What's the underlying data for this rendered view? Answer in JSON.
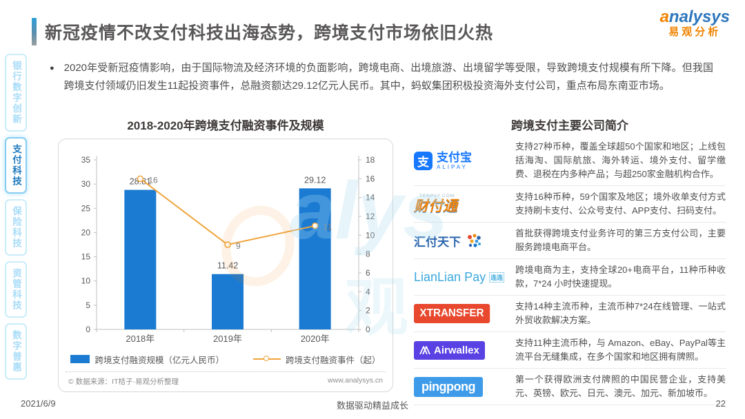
{
  "page": {
    "title": "新冠疫情不改支付科技出海态势，跨境支付市场依旧火热",
    "date": "2021/6/9",
    "slogan": "数据驱动精益成长",
    "page_number": "22"
  },
  "logo": {
    "brand_first": "a",
    "brand_rest": "nalysys",
    "brand_cn": "易观分析"
  },
  "bullet": {
    "text": "2020年受新冠疫情影响，由于国际物流及经济环境的负面影响，跨境电商、出境旅游、出境留学等受限，导致跨境支付规模有所下降。但我国跨境支付领域仍旧发生11起投资事件，总融资额达29.12亿元人民币。其中，蚂蚁集团积极投资海外支付公司，重点布局东南亚市场。"
  },
  "sidebar": {
    "items": [
      {
        "label": "银行数字创新",
        "active": false
      },
      {
        "label": "支付科技",
        "active": true
      },
      {
        "label": "保险科技",
        "active": false
      },
      {
        "label": "资管科技",
        "active": false
      },
      {
        "label": "数字普惠",
        "active": false
      }
    ]
  },
  "chart_data": {
    "type": "bar",
    "title": "2018-2020年跨境支付融资事件及规模",
    "categories": [
      "2018年",
      "2019年",
      "2020年"
    ],
    "series": [
      {
        "name": "跨境支付融资规模（亿元人民币）",
        "kind": "bar",
        "axis": "left",
        "color": "#1b7bd2",
        "values": [
          28.81,
          11.42,
          29.12
        ]
      },
      {
        "name": "跨境支付融资事件（起）",
        "kind": "line",
        "axis": "right",
        "color": "#f0a43c",
        "values": [
          16,
          9,
          11
        ]
      }
    ],
    "left_axis": {
      "min": 0,
      "max": 35,
      "step": 5
    },
    "right_axis": {
      "min": 0,
      "max": 18,
      "step": 2
    },
    "legend_position": "bottom",
    "grid": false
  },
  "chart_footer": {
    "source": "© 数据来源：IT桔子·易观分析整理",
    "website": "www.analysys.cn"
  },
  "companies": {
    "heading": "跨境支付主要公司简介",
    "rows": [
      {
        "logo": {
          "icon_char": "支",
          "name": "支付宝",
          "sub": "ALIPAY"
        },
        "desc": "支持27种币种，覆盖全球超50个国家和地区；上线包括海淘、国际航旅、海外转运、境外支付、留学缴费、退税在内多种产品；与超250家金融机构合作。"
      },
      {
        "logo": {
          "name": "财付通",
          "sub": "TENPAY.COM"
        },
        "desc": "支持16种币种，59个国家及地区；境外收单支付方式支持刷卡支付、公众号支付、APP支付、扫码支付。"
      },
      {
        "logo": {
          "name": "汇付天下"
        },
        "desc": "首批获得跨境支付业务许可的第三方支付公司，主要服务跨境电商平台。"
      },
      {
        "logo": {
          "name": "LianLian Pay",
          "badge": "连连"
        },
        "desc": "跨境电商为主，支持全球20+电商平台，11种币种收款，7*24 小时快速提现。"
      },
      {
        "logo": {
          "name": "XTRANSFER"
        },
        "desc": "支持14种主流币种，主流币种7*24在线管理、一站式外贸收款解决方案。"
      },
      {
        "logo": {
          "name": "Airwallex"
        },
        "desc": "支持11种主流币种，与 Amazon、eBay、PayPal等主流平台无缝集成，在多个国家和地区拥有牌照。"
      },
      {
        "logo": {
          "name": "pingpong"
        },
        "desc": "第一个获得欧洲支付牌照的中国民营企业，支持美元、英镑、欧元、日元、澳元、加元、新加坡币。"
      }
    ]
  }
}
